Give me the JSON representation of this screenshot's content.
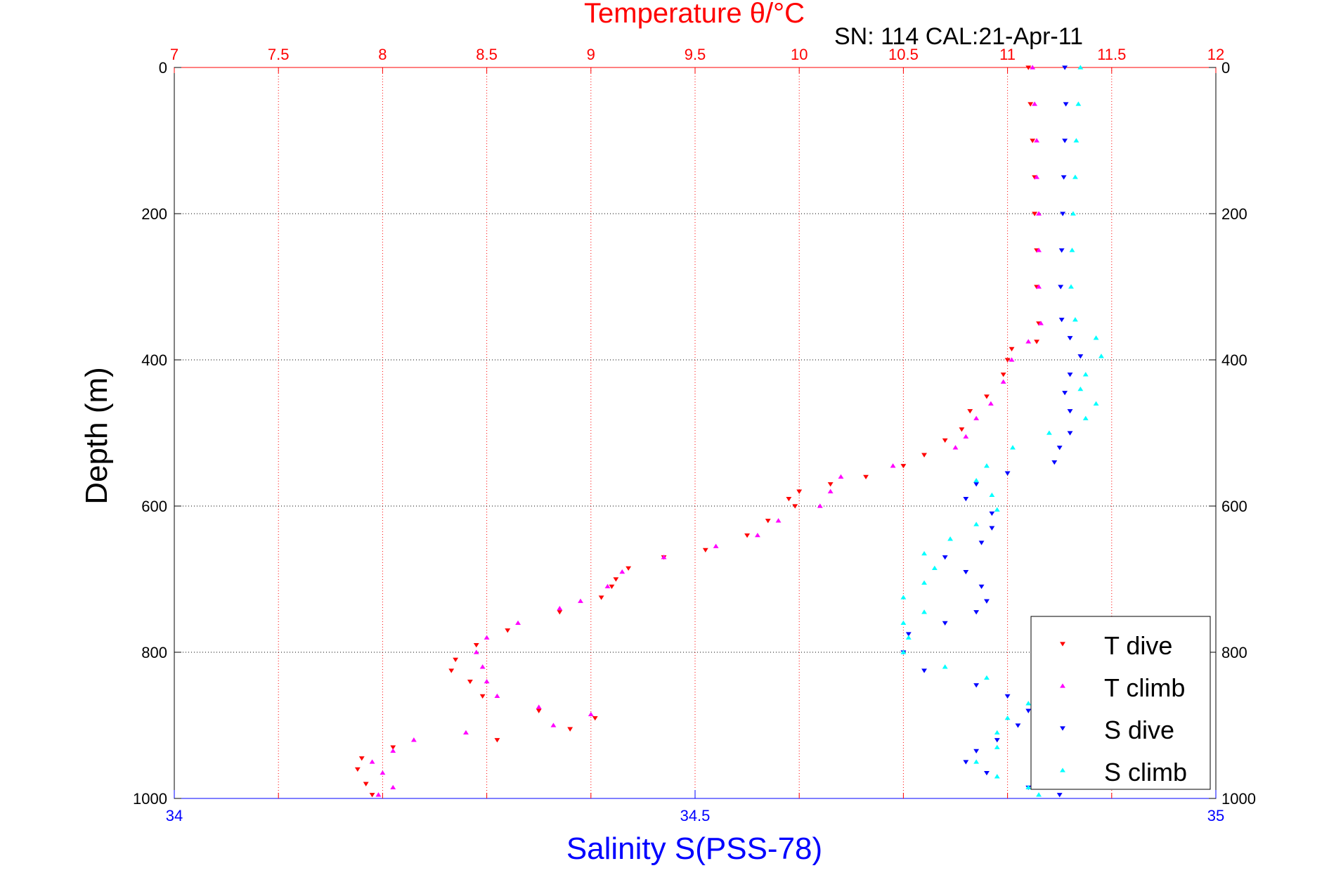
{
  "chart_data": {
    "type": "scatter",
    "title_top": "Temperature θ/°C",
    "subtitle": "SN: 114  CAL:21-Apr-11",
    "ylabel": "Depth (m)",
    "xlabel_bottom": "Salinity S(PSS-78)",
    "y_range": [
      0,
      1000
    ],
    "y_reversed": true,
    "y_ticks": [
      0,
      200,
      400,
      600,
      800,
      1000
    ],
    "x_top_range": [
      7,
      12
    ],
    "x_top_ticks": [
      7,
      7.5,
      8,
      8.5,
      9,
      9.5,
      10,
      10.5,
      11,
      11.5,
      12
    ],
    "x_bottom_range": [
      34,
      35
    ],
    "x_bottom_ticks": [
      34,
      34.5,
      35
    ],
    "grid": true,
    "legend_position": "bottom-right",
    "colors": {
      "temperature_axis": "#ff0000",
      "salinity_axis": "#0000ff",
      "depth_grid": "#000000",
      "temperature_grid": "#ff0000"
    },
    "series": [
      {
        "name": "T dive",
        "axis": "temperature",
        "marker": "triangle-down",
        "color": "#ff0000",
        "points": [
          [
            11.1,
            0
          ],
          [
            11.11,
            50
          ],
          [
            11.12,
            100
          ],
          [
            11.13,
            150
          ],
          [
            11.13,
            200
          ],
          [
            11.14,
            250
          ],
          [
            11.14,
            300
          ],
          [
            11.15,
            350
          ],
          [
            11.14,
            375
          ],
          [
            11.02,
            385
          ],
          [
            11.0,
            400
          ],
          [
            10.98,
            420
          ],
          [
            10.9,
            450
          ],
          [
            10.82,
            470
          ],
          [
            10.78,
            495
          ],
          [
            10.7,
            510
          ],
          [
            10.6,
            530
          ],
          [
            10.5,
            545
          ],
          [
            10.32,
            560
          ],
          [
            10.15,
            570
          ],
          [
            10.0,
            580
          ],
          [
            9.95,
            590
          ],
          [
            9.98,
            600
          ],
          [
            9.85,
            620
          ],
          [
            9.75,
            640
          ],
          [
            9.55,
            660
          ],
          [
            9.35,
            670
          ],
          [
            9.18,
            685
          ],
          [
            9.12,
            700
          ],
          [
            9.1,
            710
          ],
          [
            9.05,
            725
          ],
          [
            8.85,
            745
          ],
          [
            8.6,
            770
          ],
          [
            8.45,
            790
          ],
          [
            8.35,
            810
          ],
          [
            8.33,
            825
          ],
          [
            8.42,
            840
          ],
          [
            8.48,
            860
          ],
          [
            8.75,
            880
          ],
          [
            9.02,
            890
          ],
          [
            8.9,
            905
          ],
          [
            8.55,
            920
          ],
          [
            8.05,
            930
          ],
          [
            7.9,
            945
          ],
          [
            7.88,
            960
          ],
          [
            7.92,
            980
          ],
          [
            7.95,
            995
          ]
        ]
      },
      {
        "name": "T climb",
        "axis": "temperature",
        "marker": "triangle-up",
        "color": "#ff00ff",
        "points": [
          [
            11.12,
            0
          ],
          [
            11.13,
            50
          ],
          [
            11.14,
            100
          ],
          [
            11.14,
            150
          ],
          [
            11.15,
            200
          ],
          [
            11.15,
            250
          ],
          [
            11.15,
            300
          ],
          [
            11.16,
            350
          ],
          [
            11.1,
            375
          ],
          [
            11.02,
            400
          ],
          [
            10.98,
            430
          ],
          [
            10.92,
            460
          ],
          [
            10.85,
            480
          ],
          [
            10.8,
            505
          ],
          [
            10.75,
            520
          ],
          [
            10.45,
            545
          ],
          [
            10.2,
            560
          ],
          [
            10.15,
            580
          ],
          [
            10.1,
            600
          ],
          [
            9.9,
            620
          ],
          [
            9.8,
            640
          ],
          [
            9.6,
            655
          ],
          [
            9.35,
            670
          ],
          [
            9.15,
            690
          ],
          [
            9.08,
            710
          ],
          [
            8.95,
            730
          ],
          [
            8.85,
            740
          ],
          [
            8.65,
            760
          ],
          [
            8.5,
            780
          ],
          [
            8.45,
            800
          ],
          [
            8.48,
            820
          ],
          [
            8.5,
            840
          ],
          [
            8.55,
            860
          ],
          [
            8.75,
            875
          ],
          [
            9.0,
            885
          ],
          [
            8.82,
            900
          ],
          [
            8.4,
            910
          ],
          [
            8.15,
            920
          ],
          [
            8.05,
            935
          ],
          [
            7.95,
            950
          ],
          [
            8.0,
            965
          ],
          [
            8.05,
            985
          ],
          [
            7.98,
            995
          ]
        ]
      },
      {
        "name": "S dive",
        "axis": "salinity",
        "marker": "triangle-down",
        "color": "#0000ff",
        "points": [
          [
            34.855,
            0
          ],
          [
            34.856,
            50
          ],
          [
            34.855,
            100
          ],
          [
            34.854,
            150
          ],
          [
            34.853,
            200
          ],
          [
            34.852,
            250
          ],
          [
            34.851,
            300
          ],
          [
            34.852,
            345
          ],
          [
            34.86,
            370
          ],
          [
            34.87,
            395
          ],
          [
            34.86,
            420
          ],
          [
            34.855,
            445
          ],
          [
            34.86,
            470
          ],
          [
            34.86,
            500
          ],
          [
            34.85,
            520
          ],
          [
            34.845,
            540
          ],
          [
            34.8,
            555
          ],
          [
            34.77,
            570
          ],
          [
            34.76,
            590
          ],
          [
            34.785,
            610
          ],
          [
            34.785,
            630
          ],
          [
            34.775,
            650
          ],
          [
            34.74,
            670
          ],
          [
            34.76,
            690
          ],
          [
            34.775,
            710
          ],
          [
            34.78,
            730
          ],
          [
            34.77,
            745
          ],
          [
            34.74,
            760
          ],
          [
            34.705,
            775
          ],
          [
            34.7,
            800
          ],
          [
            34.72,
            825
          ],
          [
            34.77,
            845
          ],
          [
            34.8,
            860
          ],
          [
            34.82,
            880
          ],
          [
            34.81,
            900
          ],
          [
            34.79,
            920
          ],
          [
            34.77,
            935
          ],
          [
            34.76,
            950
          ],
          [
            34.78,
            965
          ],
          [
            34.82,
            985
          ],
          [
            34.85,
            995
          ]
        ]
      },
      {
        "name": "S climb",
        "axis": "salinity",
        "marker": "triangle-up",
        "color": "#00ffff",
        "points": [
          [
            34.87,
            0
          ],
          [
            34.868,
            50
          ],
          [
            34.866,
            100
          ],
          [
            34.865,
            150
          ],
          [
            34.863,
            200
          ],
          [
            34.862,
            250
          ],
          [
            34.861,
            300
          ],
          [
            34.865,
            345
          ],
          [
            34.885,
            370
          ],
          [
            34.89,
            395
          ],
          [
            34.875,
            420
          ],
          [
            34.87,
            440
          ],
          [
            34.885,
            460
          ],
          [
            34.875,
            480
          ],
          [
            34.84,
            500
          ],
          [
            34.805,
            520
          ],
          [
            34.78,
            545
          ],
          [
            34.77,
            565
          ],
          [
            34.785,
            585
          ],
          [
            34.79,
            605
          ],
          [
            34.77,
            625
          ],
          [
            34.745,
            645
          ],
          [
            34.72,
            665
          ],
          [
            34.73,
            685
          ],
          [
            34.72,
            705
          ],
          [
            34.7,
            725
          ],
          [
            34.72,
            745
          ],
          [
            34.7,
            760
          ],
          [
            34.705,
            780
          ],
          [
            34.7,
            800
          ],
          [
            34.74,
            820
          ],
          [
            34.78,
            835
          ],
          [
            34.825,
            850
          ],
          [
            34.82,
            870
          ],
          [
            34.8,
            890
          ],
          [
            34.79,
            910
          ],
          [
            34.79,
            930
          ],
          [
            34.77,
            950
          ],
          [
            34.79,
            970
          ],
          [
            34.82,
            985
          ],
          [
            34.83,
            995
          ]
        ]
      }
    ]
  }
}
